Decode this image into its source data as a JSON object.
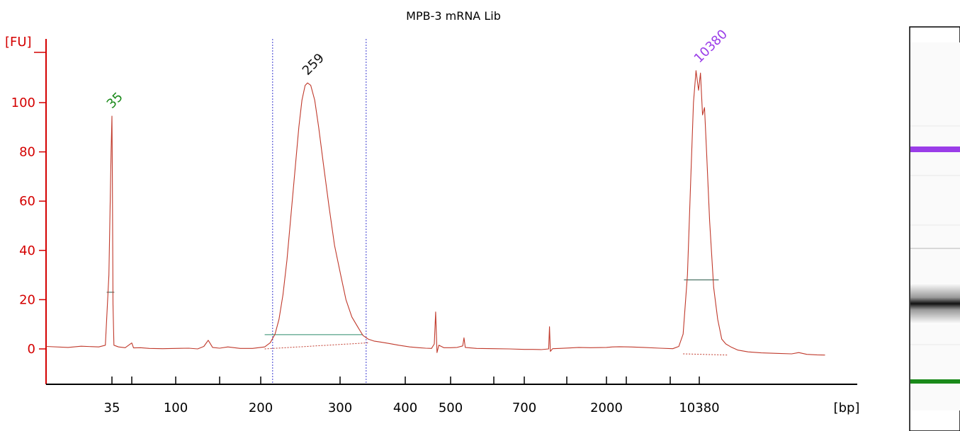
{
  "chart_data": {
    "type": "line",
    "title": "MPB-3 mRNA Lib",
    "ylabel": "[FU]",
    "xlabel": "[bp]",
    "ylim": [
      -14,
      122
    ],
    "y_ticks": [
      0,
      20,
      40,
      60,
      80,
      100
    ],
    "x_tick_labels": [
      {
        "label": "35",
        "x": 35
      },
      {
        "label": "100",
        "x": 100
      },
      {
        "label": "200",
        "x": 200
      },
      {
        "label": "300",
        "x": 300
      },
      {
        "label": "400",
        "x": 400
      },
      {
        "label": "500",
        "x": 500
      },
      {
        "label": "700",
        "x": 700
      },
      {
        "label": "2000",
        "x": 2000
      },
      {
        "label": "10380",
        "x": 10380
      }
    ],
    "peak_labels": [
      {
        "label": "35",
        "x": 35,
        "y": 94.5,
        "color": "#1a8a1a"
      },
      {
        "label": "259",
        "x": 259,
        "y": 108,
        "color": "#111111"
      },
      {
        "label": "10380",
        "x": 10380,
        "y": 113,
        "color": "#9a3de8"
      }
    ],
    "region_markers": [
      215,
      340
    ],
    "series": [
      {
        "color": "#c0392b",
        "points": [
          [
            20,
            1
          ],
          [
            25,
            0.6
          ],
          [
            28,
            1.1
          ],
          [
            32,
            0.8
          ],
          [
            33.5,
            1.5
          ],
          [
            34.3,
            30
          ],
          [
            34.8,
            80
          ],
          [
            35,
            94.5
          ],
          [
            35.3,
            70
          ],
          [
            35.8,
            18
          ],
          [
            36.5,
            1.5
          ],
          [
            40,
            0.8
          ],
          [
            45,
            0.5
          ],
          [
            50,
            2.4
          ],
          [
            52,
            0.4
          ],
          [
            60,
            0.5
          ],
          [
            70,
            0.2
          ],
          [
            85,
            0.1
          ],
          [
            100,
            0.2
          ],
          [
            115,
            0.3
          ],
          [
            125,
            0
          ],
          [
            132,
            1
          ],
          [
            137,
            3.5
          ],
          [
            142,
            0.6
          ],
          [
            150,
            0.3
          ],
          [
            160,
            0.8
          ],
          [
            175,
            0.2
          ],
          [
            190,
            0.2
          ],
          [
            205,
            0.8
          ],
          [
            212,
            2.5
          ],
          [
            218,
            6
          ],
          [
            223,
            12
          ],
          [
            228,
            22
          ],
          [
            233,
            36
          ],
          [
            238,
            54
          ],
          [
            243,
            72
          ],
          [
            248,
            90
          ],
          [
            252,
            101
          ],
          [
            256,
            107
          ],
          [
            259,
            108
          ],
          [
            263,
            107
          ],
          [
            268,
            101
          ],
          [
            273,
            90
          ],
          [
            279,
            75
          ],
          [
            286,
            58
          ],
          [
            293,
            42
          ],
          [
            301,
            30
          ],
          [
            309,
            20
          ],
          [
            318,
            13
          ],
          [
            327,
            9
          ],
          [
            335,
            5.5
          ],
          [
            343,
            4
          ],
          [
            352,
            3.2
          ],
          [
            362,
            2.8
          ],
          [
            375,
            2.2
          ],
          [
            390,
            1.5
          ],
          [
            410,
            0.8
          ],
          [
            430,
            0.5
          ],
          [
            445,
            0.3
          ],
          [
            458,
            0.2
          ],
          [
            464,
            2
          ],
          [
            467,
            15
          ],
          [
            470,
            -1.5
          ],
          [
            474,
            1.5
          ],
          [
            485,
            0.5
          ],
          [
            500,
            0.5
          ],
          [
            515,
            0.6
          ],
          [
            528,
            1.2
          ],
          [
            531,
            4.5
          ],
          [
            534,
            0.6
          ],
          [
            560,
            0.2
          ],
          [
            600,
            0.1
          ],
          [
            650,
            0
          ],
          [
            700,
            -0.2
          ],
          [
            760,
            -0.2
          ],
          [
            820,
            -0.3
          ],
          [
            872,
            0
          ],
          [
            878,
            9
          ],
          [
            884,
            -1
          ],
          [
            900,
            0.1
          ],
          [
            950,
            0.2
          ],
          [
            1100,
            0.4
          ],
          [
            1300,
            0.6
          ],
          [
            1600,
            0.5
          ],
          [
            2000,
            0.6
          ],
          [
            2600,
            0.8
          ],
          [
            3300,
            0.9
          ],
          [
            4200,
            0.8
          ],
          [
            5200,
            0.6
          ],
          [
            6300,
            0.3
          ],
          [
            7300,
            0.1
          ],
          [
            8000,
            1
          ],
          [
            8500,
            6
          ],
          [
            9000,
            30
          ],
          [
            9400,
            70
          ],
          [
            9700,
            100
          ],
          [
            10000,
            113
          ],
          [
            10300,
            105
          ],
          [
            10500,
            112
          ],
          [
            10700,
            95
          ],
          [
            10900,
            98
          ],
          [
            11100,
            80
          ],
          [
            11400,
            52
          ],
          [
            11800,
            25
          ],
          [
            12200,
            12
          ],
          [
            12600,
            4
          ],
          [
            13000,
            2
          ],
          [
            13500,
            0.8
          ],
          [
            14200,
            -0.5
          ],
          [
            15200,
            -1.2
          ],
          [
            16500,
            -1.6
          ],
          [
            18000,
            -1.8
          ],
          [
            19500,
            -2
          ],
          [
            20200,
            -1.5
          ],
          [
            21000,
            -2.2
          ],
          [
            22000,
            -2.4
          ],
          [
            22800,
            -2.5
          ]
        ]
      }
    ]
  },
  "gel_lane": {
    "bands": [
      {
        "name": "upper-marker-band",
        "color": "#9a3de8"
      },
      {
        "name": "library-band",
        "color": "#111111"
      },
      {
        "name": "lower-marker-band",
        "color": "#1a8a1a"
      }
    ]
  }
}
